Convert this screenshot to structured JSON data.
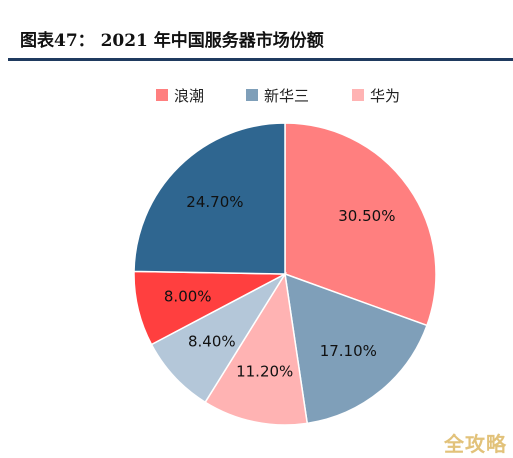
{
  "header": {
    "title": "图表47：  2021 年中国服务器市场份额"
  },
  "watermark": "全攻略",
  "chart_data": {
    "type": "pie",
    "title": "2021 年中国服务器市场份额",
    "legend_position": "top",
    "start_angle_deg": 0,
    "direction": "clockwise",
    "legend": [
      {
        "name": "浪潮",
        "color": "#ff7f7f"
      },
      {
        "name": "新华三",
        "color": "#7f9fb9"
      },
      {
        "name": "华为",
        "color": "#ffb3b3"
      }
    ],
    "slices": [
      {
        "value": 30.5,
        "label": "30.50%",
        "color": "#ff7f7f"
      },
      {
        "value": 17.1,
        "label": "17.10%",
        "color": "#7f9fb9"
      },
      {
        "value": 11.2,
        "label": "11.20%",
        "color": "#ffb3b3"
      },
      {
        "value": 8.4,
        "label": "8.40%",
        "color": "#b4c7d9"
      },
      {
        "value": 8.0,
        "label": "8.00%",
        "color": "#ff3f3f"
      },
      {
        "value": 24.7,
        "label": "24.70%",
        "color": "#2f6690"
      }
    ]
  }
}
